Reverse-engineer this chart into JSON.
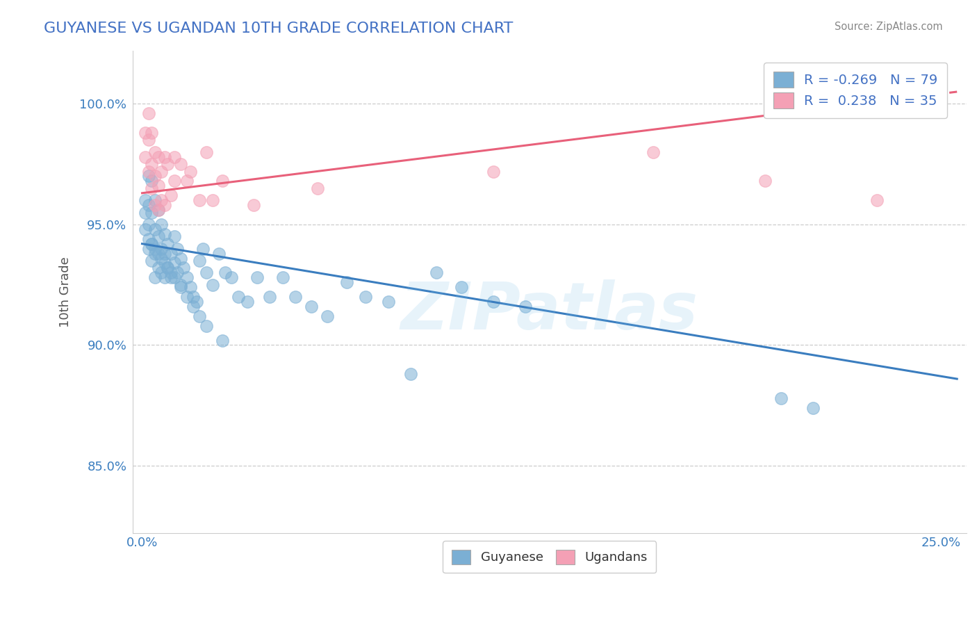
{
  "title": "GUYANESE VS UGANDAN 10TH GRADE CORRELATION CHART",
  "source": "Source: ZipAtlas.com",
  "ylabel": "10th Grade",
  "xlim": [
    -0.003,
    0.258
  ],
  "ylim": [
    0.822,
    1.022
  ],
  "blue_R": -0.269,
  "blue_N": 79,
  "pink_R": 0.238,
  "pink_N": 35,
  "blue_color": "#7BAFD4",
  "pink_color": "#F4A0B5",
  "blue_line_color": "#3A7DBF",
  "pink_line_color": "#E8607A",
  "title_color": "#4472C4",
  "legend_text_color": "#4472C4",
  "watermark": "ZIPatlas",
  "background_color": "#FFFFFF",
  "blue_line_x0": 0.0,
  "blue_line_y0": 0.942,
  "blue_line_x1": 0.255,
  "blue_line_y1": 0.886,
  "pink_line_x0": 0.0,
  "pink_line_y0": 0.963,
  "pink_line_x1": 0.255,
  "pink_line_y1": 1.005,
  "blue_x": [
    0.001,
    0.001,
    0.001,
    0.002,
    0.002,
    0.002,
    0.002,
    0.003,
    0.003,
    0.003,
    0.003,
    0.004,
    0.004,
    0.004,
    0.004,
    0.005,
    0.005,
    0.005,
    0.006,
    0.006,
    0.006,
    0.007,
    0.007,
    0.007,
    0.008,
    0.008,
    0.009,
    0.009,
    0.01,
    0.01,
    0.011,
    0.011,
    0.012,
    0.012,
    0.013,
    0.014,
    0.015,
    0.016,
    0.017,
    0.018,
    0.019,
    0.02,
    0.022,
    0.024,
    0.026,
    0.028,
    0.03,
    0.033,
    0.036,
    0.04,
    0.044,
    0.048,
    0.053,
    0.058,
    0.064,
    0.07,
    0.077,
    0.084,
    0.092,
    0.1,
    0.11,
    0.12,
    0.002,
    0.003,
    0.004,
    0.005,
    0.006,
    0.007,
    0.008,
    0.009,
    0.01,
    0.012,
    0.014,
    0.016,
    0.018,
    0.02,
    0.025,
    0.2,
    0.21
  ],
  "blue_y": [
    0.96,
    0.955,
    0.948,
    0.97,
    0.958,
    0.95,
    0.94,
    0.968,
    0.955,
    0.942,
    0.935,
    0.96,
    0.948,
    0.938,
    0.928,
    0.956,
    0.945,
    0.932,
    0.95,
    0.94,
    0.93,
    0.946,
    0.938,
    0.928,
    0.942,
    0.932,
    0.938,
    0.928,
    0.945,
    0.934,
    0.94,
    0.93,
    0.936,
    0.925,
    0.932,
    0.928,
    0.924,
    0.92,
    0.918,
    0.935,
    0.94,
    0.93,
    0.925,
    0.938,
    0.93,
    0.928,
    0.92,
    0.918,
    0.928,
    0.92,
    0.928,
    0.92,
    0.916,
    0.912,
    0.926,
    0.92,
    0.918,
    0.888,
    0.93,
    0.924,
    0.918,
    0.916,
    0.944,
    0.942,
    0.94,
    0.938,
    0.936,
    0.934,
    0.932,
    0.93,
    0.928,
    0.924,
    0.92,
    0.916,
    0.912,
    0.908,
    0.902,
    0.878,
    0.874
  ],
  "pink_x": [
    0.001,
    0.001,
    0.002,
    0.002,
    0.002,
    0.003,
    0.003,
    0.003,
    0.004,
    0.004,
    0.004,
    0.005,
    0.005,
    0.005,
    0.006,
    0.006,
    0.007,
    0.007,
    0.008,
    0.009,
    0.01,
    0.01,
    0.012,
    0.014,
    0.015,
    0.018,
    0.02,
    0.022,
    0.025,
    0.035,
    0.055,
    0.11,
    0.16,
    0.195,
    0.23
  ],
  "pink_y": [
    0.988,
    0.978,
    0.996,
    0.985,
    0.972,
    0.988,
    0.975,
    0.965,
    0.98,
    0.97,
    0.958,
    0.978,
    0.966,
    0.956,
    0.972,
    0.96,
    0.978,
    0.958,
    0.975,
    0.962,
    0.978,
    0.968,
    0.975,
    0.968,
    0.972,
    0.96,
    0.98,
    0.96,
    0.968,
    0.958,
    0.965,
    0.972,
    0.98,
    0.968,
    0.96
  ]
}
